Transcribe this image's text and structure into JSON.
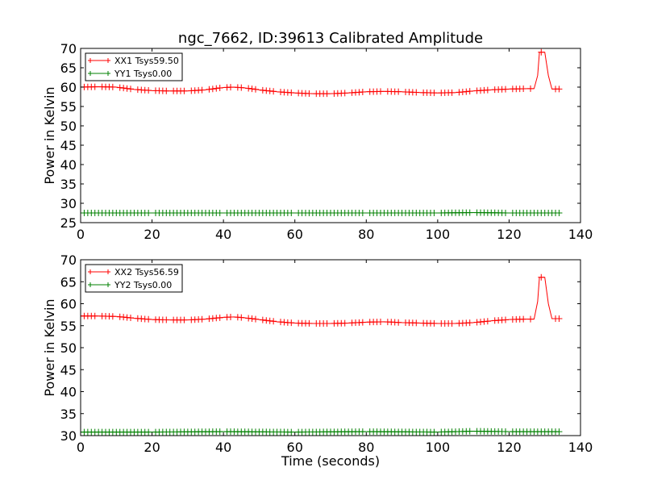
{
  "title": "ngc_7662, ID:39613 Calibrated Amplitude",
  "chart_data": [
    {
      "type": "line",
      "title": "ngc_7662, ID:39613 Calibrated Amplitude",
      "xlabel": "",
      "ylabel": "Power in Kelvin",
      "xlim": [
        0,
        140
      ],
      "ylim": [
        25,
        70
      ],
      "xticks": [
        "0",
        "20",
        "40",
        "60",
        "80",
        "100",
        "120",
        "140"
      ],
      "yticks": [
        "25",
        "30",
        "35",
        "40",
        "45",
        "50",
        "55",
        "60",
        "65",
        "70"
      ],
      "grid": false,
      "legend_position": "top-left",
      "series": [
        {
          "name": "XX1 Tsys59.50",
          "color": "#ff0000",
          "marker": "plus",
          "points": [
            [
              0,
              60.0
            ],
            [
              5,
              60.1
            ],
            [
              10,
              60.0
            ],
            [
              15,
              59.4
            ],
            [
              20,
              59.1
            ],
            [
              25,
              59.0
            ],
            [
              30,
              59.0
            ],
            [
              35,
              59.3
            ],
            [
              40,
              59.9
            ],
            [
              43,
              60.0
            ],
            [
              46,
              59.8
            ],
            [
              50,
              59.3
            ],
            [
              55,
              58.8
            ],
            [
              60,
              58.5
            ],
            [
              65,
              58.3
            ],
            [
              70,
              58.3
            ],
            [
              75,
              58.5
            ],
            [
              80,
              58.8
            ],
            [
              85,
              58.9
            ],
            [
              90,
              58.8
            ],
            [
              95,
              58.6
            ],
            [
              100,
              58.5
            ],
            [
              105,
              58.6
            ],
            [
              110,
              59.0
            ],
            [
              115,
              59.3
            ],
            [
              120,
              59.5
            ],
            [
              125,
              59.6
            ],
            [
              127,
              59.6
            ],
            [
              128,
              63.0
            ],
            [
              128.5,
              69.0
            ],
            [
              130,
              69.0
            ],
            [
              131,
              63.0
            ],
            [
              132,
              59.5
            ],
            [
              134,
              59.5
            ]
          ]
        },
        {
          "name": "YY1 Tsys0.00",
          "color": "#008000",
          "marker": "plus",
          "points": [
            [
              0,
              27.5
            ],
            [
              20,
              27.5
            ],
            [
              40,
              27.5
            ],
            [
              60,
              27.5
            ],
            [
              80,
              27.5
            ],
            [
              100,
              27.5
            ],
            [
              110,
              27.6
            ],
            [
              120,
              27.5
            ],
            [
              134,
              27.5
            ]
          ]
        }
      ]
    },
    {
      "type": "line",
      "title": "",
      "xlabel": "Time (seconds)",
      "ylabel": "Power in Kelvin",
      "xlim": [
        0,
        140
      ],
      "ylim": [
        30,
        70
      ],
      "xticks": [
        "0",
        "20",
        "40",
        "60",
        "80",
        "100",
        "120",
        "140"
      ],
      "yticks": [
        "30",
        "35",
        "40",
        "45",
        "50",
        "55",
        "60",
        "65",
        "70"
      ],
      "grid": false,
      "legend_position": "top-left",
      "series": [
        {
          "name": "XX2 Tsys56.59",
          "color": "#ff0000",
          "marker": "plus",
          "points": [
            [
              0,
              57.2
            ],
            [
              5,
              57.2
            ],
            [
              10,
              57.1
            ],
            [
              15,
              56.7
            ],
            [
              20,
              56.4
            ],
            [
              25,
              56.3
            ],
            [
              30,
              56.3
            ],
            [
              35,
              56.5
            ],
            [
              40,
              56.9
            ],
            [
              43,
              57.0
            ],
            [
              46,
              56.8
            ],
            [
              50,
              56.4
            ],
            [
              55,
              55.9
            ],
            [
              60,
              55.6
            ],
            [
              65,
              55.5
            ],
            [
              70,
              55.5
            ],
            [
              75,
              55.6
            ],
            [
              80,
              55.8
            ],
            [
              85,
              55.9
            ],
            [
              90,
              55.7
            ],
            [
              95,
              55.6
            ],
            [
              100,
              55.5
            ],
            [
              105,
              55.5
            ],
            [
              110,
              55.7
            ],
            [
              115,
              56.1
            ],
            [
              120,
              56.4
            ],
            [
              125,
              56.5
            ],
            [
              127,
              56.5
            ],
            [
              128,
              60.5
            ],
            [
              128.5,
              66.0
            ],
            [
              130,
              66.0
            ],
            [
              131,
              60.0
            ],
            [
              132,
              56.6
            ],
            [
              134,
              56.6
            ]
          ]
        },
        {
          "name": "YY2 Tsys0.00",
          "color": "#008000",
          "marker": "plus",
          "points": [
            [
              0,
              30.8
            ],
            [
              20,
              30.8
            ],
            [
              40,
              30.9
            ],
            [
              60,
              30.8
            ],
            [
              80,
              30.9
            ],
            [
              100,
              30.8
            ],
            [
              110,
              31.0
            ],
            [
              120,
              30.9
            ],
            [
              134,
              30.9
            ]
          ]
        }
      ]
    }
  ]
}
